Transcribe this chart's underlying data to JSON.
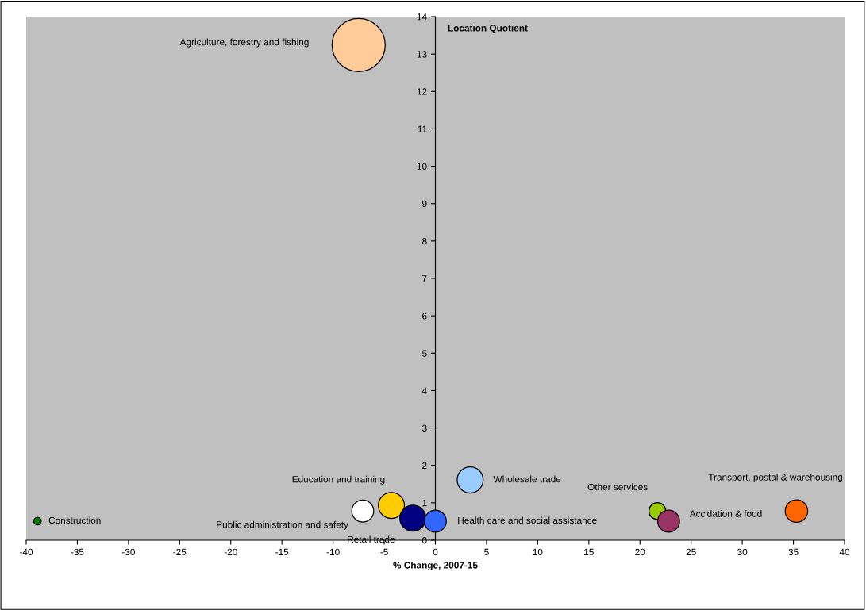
{
  "chart_data": {
    "type": "bubble",
    "xlabel": "% Change, 2007-15",
    "ylabel": "Location Quotient",
    "xlim": [
      -40,
      40
    ],
    "xticks": [
      -40,
      -35,
      -30,
      -25,
      -20,
      -15,
      -10,
      -5,
      0,
      5,
      10,
      15,
      20,
      25,
      30,
      35,
      40
    ],
    "ylim": [
      0,
      14
    ],
    "yticks": [
      0,
      1,
      2,
      3,
      4,
      5,
      6,
      7,
      8,
      9,
      10,
      11,
      12,
      13,
      14
    ],
    "grid": false,
    "legend": false,
    "series": [
      {
        "name": "Agriculture, forestry and fishing",
        "color": "#ffcc99",
        "x": [
          -7.5
        ],
        "values": [
          13.24
        ],
        "sizes": [
          1
        ]
      },
      {
        "name": "Construction",
        "color": "#008000",
        "x": [
          -38.9
        ],
        "values": [
          0.51
        ],
        "sizes": [
          0.02
        ]
      },
      {
        "name": "Public administration and safety",
        "color": "#ffffff",
        "x": [
          -7.1
        ],
        "values": [
          0.78
        ],
        "sizes": [
          0.17
        ]
      },
      {
        "name": "Education and training",
        "color": "#ffcc00",
        "x": [
          -4.3
        ],
        "values": [
          0.93
        ],
        "sizes": [
          0.24
        ]
      },
      {
        "name": "Retail trade",
        "color": "#000080",
        "x": [
          -2.2
        ],
        "values": [
          0.59
        ],
        "sizes": [
          0.24
        ]
      },
      {
        "name": "Health care and social assistance",
        "color": "#3366ff",
        "x": [
          0.0
        ],
        "values": [
          0.51
        ],
        "sizes": [
          0.17
        ]
      },
      {
        "name": "Wholesale trade",
        "color": "#99ccff",
        "x": [
          3.4
        ],
        "values": [
          1.61
        ],
        "sizes": [
          0.24
        ]
      },
      {
        "name": "Other services",
        "color": "#99cc00",
        "x": [
          21.7
        ],
        "values": [
          0.78
        ],
        "sizes": [
          0.1
        ]
      },
      {
        "name": "Acc'dation & food",
        "color": "#993366",
        "x": [
          22.8
        ],
        "values": [
          0.51
        ],
        "sizes": [
          0.17
        ]
      },
      {
        "name": "Transport, postal & warehousing",
        "color": "#ff6600",
        "x": [
          35.3
        ],
        "values": [
          0.78
        ],
        "sizes": [
          0.18
        ]
      }
    ]
  }
}
